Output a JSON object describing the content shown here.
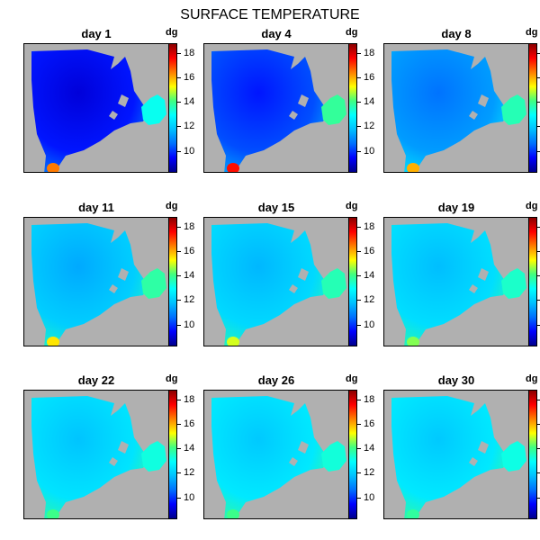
{
  "title": "SURFACE TEMPERATURE",
  "chart_data": {
    "type": "heatmap",
    "title": "SURFACE TEMPERATURE",
    "unit": "dg",
    "color_range": [
      8.2,
      18.8
    ],
    "colorbar_ticks": [
      "10",
      "12",
      "14",
      "16",
      "18"
    ],
    "colormap": [
      "#00008b",
      "#0000ff",
      "#0070ff",
      "#00c0ff",
      "#00ffff",
      "#40ff80",
      "#ffff00",
      "#ff8000",
      "#ff0000",
      "#8b0000"
    ],
    "background_color": "#b0b0b0",
    "panels": [
      {
        "label": "day  1",
        "base_temp": 9.6,
        "warm_spot_temp": 16.5
      },
      {
        "label": "day  4",
        "base_temp": 10.2,
        "warm_spot_temp": 17.5
      },
      {
        "label": "day  8",
        "base_temp": 11.2,
        "warm_spot_temp": 16.0
      },
      {
        "label": "day  11",
        "base_temp": 12.0,
        "warm_spot_temp": 15.5
      },
      {
        "label": "day  15",
        "base_temp": 12.2,
        "warm_spot_temp": 15.0
      },
      {
        "label": "day  19",
        "base_temp": 12.3,
        "warm_spot_temp": 14.5
      },
      {
        "label": "day  22",
        "base_temp": 12.4,
        "warm_spot_temp": 14.0
      },
      {
        "label": "day  26",
        "base_temp": 12.5,
        "warm_spot_temp": 14.0
      },
      {
        "label": "day  30",
        "base_temp": 12.5,
        "warm_spot_temp": 13.8
      }
    ]
  }
}
